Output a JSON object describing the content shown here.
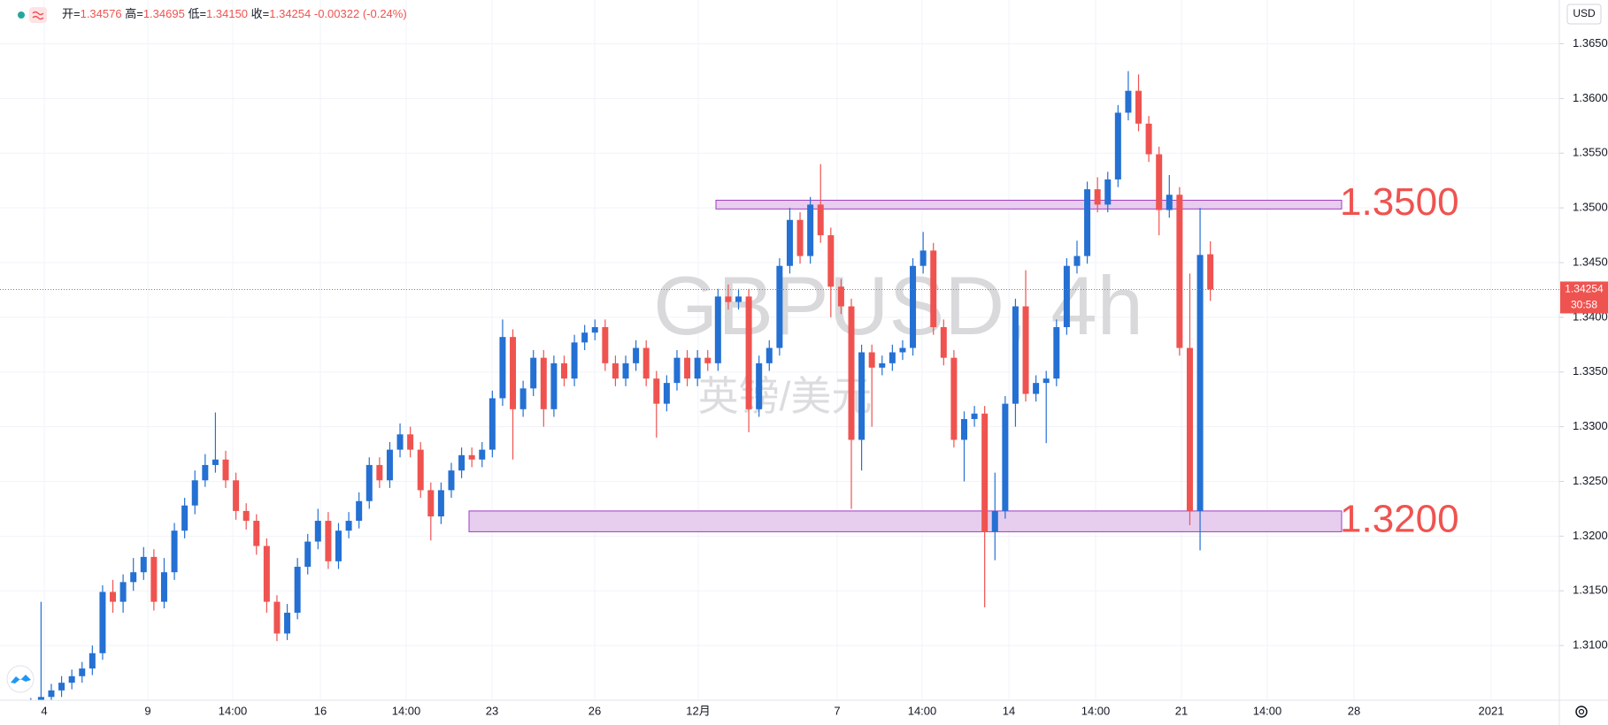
{
  "chart_data": {
    "type": "candlestick",
    "watermark": "GBPUSD, 4h",
    "watermark_sub": "英镑/美元",
    "currency": "USD",
    "header": {
      "open_label": "开=",
      "open": "1.34576",
      "high_label": "高=",
      "high": "1.34695",
      "low_label": "低=",
      "low": "1.34150",
      "close_label": "收=",
      "close": "1.34254",
      "change": "-0.00322",
      "change_pct": "(-0.24%)"
    },
    "up_color": "#2470d3",
    "down_color": "#ef5350",
    "ylim": [
      1.305,
      1.369
    ],
    "yticks": [
      {
        "value": 1.365,
        "label": "1.36500"
      },
      {
        "value": 1.36,
        "label": "1.36000"
      },
      {
        "value": 1.355,
        "label": "1.35500"
      },
      {
        "value": 1.35,
        "label": "1.35000"
      },
      {
        "value": 1.345,
        "label": "1.34500"
      },
      {
        "value": 1.34,
        "label": "1.34000"
      },
      {
        "value": 1.335,
        "label": "1.33500"
      },
      {
        "value": 1.33,
        "label": "1.33000"
      },
      {
        "value": 1.325,
        "label": "1.32500"
      },
      {
        "value": 1.32,
        "label": "1.32000"
      },
      {
        "value": 1.315,
        "label": "1.31500"
      },
      {
        "value": 1.31,
        "label": "1.31000"
      }
    ],
    "xtick_labels": [
      "4",
      "9",
      "14:00",
      "16",
      "14:00",
      "23",
      "26",
      "12月",
      "7",
      "14:00",
      "14",
      "14:00",
      "21",
      "14:00",
      "28",
      "2021"
    ],
    "grid": true,
    "last_price_label": "1.34254",
    "countdown": "30:58",
    "zones": [
      {
        "label": "1.3500",
        "top": 1.3507,
        "bottom": 1.3499
      },
      {
        "label": "1.3200",
        "top": 1.3223,
        "bottom": 1.3204
      }
    ],
    "open": [
      1.304,
      1.3046,
      1.3053,
      1.3059,
      1.3066,
      1.3072,
      1.3079,
      1.3093,
      1.3149,
      1.314,
      1.3158,
      1.3167,
      1.3181,
      1.314,
      1.3167,
      1.3205,
      1.3228,
      1.3251,
      1.3265,
      1.327,
      1.3251,
      1.3223,
      1.3214,
      1.3191,
      1.314,
      1.3111,
      1.313,
      1.3172,
      1.3195,
      1.3214,
      1.3177,
      1.3205,
      1.3214,
      1.3232,
      1.3265,
      1.3251,
      1.3279,
      1.3293,
      1.3279,
      1.3242,
      1.3218,
      1.3242,
      1.326,
      1.3274,
      1.327,
      1.3279,
      1.3326,
      1.3382,
      1.3316,
      1.3335,
      1.3363,
      1.3316,
      1.3358,
      1.3344,
      1.3377,
      1.3386,
      1.3391,
      1.3358,
      1.3344,
      1.3358,
      1.3372,
      1.3344,
      1.3321,
      1.334,
      1.3363,
      1.3344,
      1.3363,
      1.3358,
      1.3419,
      1.3414,
      1.3419,
      1.3316,
      1.3358,
      1.3372,
      1.3447,
      1.3489,
      1.3456,
      1.3503,
      1.3475,
      1.3428,
      1.341,
      1.3288,
      1.3368,
      1.3354,
      1.3358,
      1.3368,
      1.3372,
      1.3447,
      1.3461,
      1.3391,
      1.3363,
      1.3288,
      1.3307,
      1.3312,
      1.3204,
      1.3223,
      1.3321,
      1.341,
      1.333,
      1.334,
      1.3344,
      1.3391,
      1.3447,
      1.3456,
      1.3517,
      1.3503,
      1.3526,
      1.3587,
      1.3607,
      1.3577,
      1.3549,
      1.3498,
      1.3512,
      1.3372,
      1.3223,
      1.34576
    ],
    "high": [
      1.3052,
      1.314,
      1.3065,
      1.3072,
      1.3078,
      1.3085,
      1.31,
      1.3155,
      1.316,
      1.3165,
      1.318,
      1.319,
      1.3188,
      1.318,
      1.3212,
      1.3235,
      1.326,
      1.3275,
      1.3313,
      1.3278,
      1.3258,
      1.323,
      1.322,
      1.3198,
      1.3146,
      1.3138,
      1.318,
      1.3202,
      1.3225,
      1.3222,
      1.3212,
      1.3222,
      1.324,
      1.3272,
      1.3272,
      1.3286,
      1.3303,
      1.33,
      1.3286,
      1.3249,
      1.3249,
      1.3267,
      1.3281,
      1.3281,
      1.3286,
      1.3333,
      1.3398,
      1.3389,
      1.3342,
      1.337,
      1.337,
      1.3365,
      1.3365,
      1.3384,
      1.3393,
      1.3398,
      1.3398,
      1.3365,
      1.3365,
      1.3379,
      1.3379,
      1.3351,
      1.3347,
      1.337,
      1.337,
      1.337,
      1.337,
      1.3426,
      1.343,
      1.3426,
      1.3426,
      1.3365,
      1.3379,
      1.3454,
      1.35,
      1.3496,
      1.351,
      1.354,
      1.3482,
      1.3435,
      1.3417,
      1.3375,
      1.3375,
      1.3365,
      1.3375,
      1.3379,
      1.3454,
      1.3478,
      1.3468,
      1.3398,
      1.337,
      1.3314,
      1.3319,
      1.3319,
      1.3258,
      1.3328,
      1.3417,
      1.3443,
      1.3347,
      1.3351,
      1.3398,
      1.3454,
      1.347,
      1.3524,
      1.3528,
      1.3533,
      1.3594,
      1.3625,
      1.3622,
      1.3584,
      1.3556,
      1.353,
      1.3519,
      1.344,
      1.35,
      1.34695
    ],
    "low": [
      1.3034,
      1.304,
      1.3047,
      1.3053,
      1.306,
      1.3066,
      1.3073,
      1.3087,
      1.313,
      1.313,
      1.315,
      1.316,
      1.3132,
      1.3134,
      1.316,
      1.3198,
      1.322,
      1.3245,
      1.3258,
      1.3244,
      1.3215,
      1.3206,
      1.3183,
      1.313,
      1.3104,
      1.3105,
      1.3124,
      1.3165,
      1.3188,
      1.317,
      1.317,
      1.3198,
      1.3207,
      1.3225,
      1.3244,
      1.3244,
      1.3272,
      1.3272,
      1.3235,
      1.3196,
      1.3211,
      1.3235,
      1.3253,
      1.3263,
      1.3263,
      1.3272,
      1.3319,
      1.327,
      1.3309,
      1.3328,
      1.33,
      1.3309,
      1.3337,
      1.3337,
      1.337,
      1.3379,
      1.3351,
      1.3337,
      1.3337,
      1.3351,
      1.3337,
      1.329,
      1.3314,
      1.3333,
      1.3337,
      1.3337,
      1.3351,
      1.3351,
      1.3407,
      1.3407,
      1.3295,
      1.3309,
      1.3351,
      1.3365,
      1.344,
      1.3449,
      1.3449,
      1.3468,
      1.34,
      1.3403,
      1.3225,
      1.326,
      1.33,
      1.3347,
      1.3351,
      1.3361,
      1.3365,
      1.344,
      1.3384,
      1.3356,
      1.3281,
      1.325,
      1.33,
      1.3135,
      1.3178,
      1.3216,
      1.33,
      1.3323,
      1.3323,
      1.3285,
      1.3337,
      1.3384,
      1.344,
      1.3449,
      1.3496,
      1.3496,
      1.3519,
      1.358,
      1.357,
      1.3542,
      1.3475,
      1.3491,
      1.3365,
      1.321,
      1.3187,
      1.3415
    ],
    "close": [
      1.3046,
      1.3053,
      1.3059,
      1.3066,
      1.3072,
      1.3079,
      1.3093,
      1.3149,
      1.314,
      1.3158,
      1.3167,
      1.3181,
      1.314,
      1.3167,
      1.3205,
      1.3228,
      1.3251,
      1.3265,
      1.327,
      1.3251,
      1.3223,
      1.3214,
      1.3191,
      1.314,
      1.3111,
      1.313,
      1.3172,
      1.3195,
      1.3214,
      1.3177,
      1.3205,
      1.3214,
      1.3232,
      1.3265,
      1.3251,
      1.3279,
      1.3293,
      1.3279,
      1.3242,
      1.3218,
      1.3242,
      1.326,
      1.3274,
      1.327,
      1.3279,
      1.3326,
      1.3382,
      1.3316,
      1.3335,
      1.3363,
      1.3316,
      1.3358,
      1.3344,
      1.3377,
      1.3386,
      1.3391,
      1.3358,
      1.3344,
      1.3358,
      1.3372,
      1.3344,
      1.3321,
      1.334,
      1.3363,
      1.3344,
      1.3363,
      1.3358,
      1.3419,
      1.3414,
      1.3419,
      1.3316,
      1.3358,
      1.3372,
      1.3447,
      1.3489,
      1.3456,
      1.3503,
      1.3475,
      1.3428,
      1.341,
      1.3288,
      1.3368,
      1.3354,
      1.3358,
      1.3368,
      1.3372,
      1.3447,
      1.3461,
      1.3391,
      1.3363,
      1.3288,
      1.3307,
      1.3312,
      1.3204,
      1.3223,
      1.3321,
      1.341,
      1.333,
      1.334,
      1.3344,
      1.3391,
      1.3447,
      1.3456,
      1.3517,
      1.3503,
      1.3526,
      1.3587,
      1.3607,
      1.3577,
      1.3549,
      1.3498,
      1.3512,
      1.3372,
      1.3223,
      1.3457,
      1.34254
    ]
  }
}
